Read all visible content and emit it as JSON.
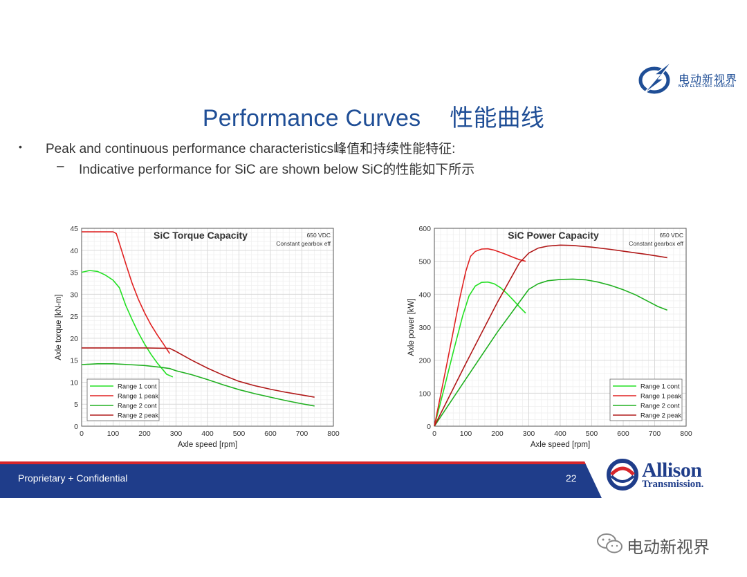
{
  "slide": {
    "title_en": "Performance Curves",
    "title_cn": "性能曲线",
    "bullet1": "Peak and continuous performance characteristics峰值和持续性能特征:",
    "bullet2_marker": "–",
    "bullet1_marker": "•",
    "bullet2": "Indicative performance for SiC are shown below SiC的性能如下所示",
    "footer_left": "Proprietary + Confidential",
    "page_number": "22",
    "brand_cn": "电动新视界",
    "brand_en": "NEW ELECTRIC HORIZON",
    "allison_name": "Allison",
    "allison_sub": "Transmission.",
    "wechat_name": "电动新视界",
    "colors": {
      "title_blue": "#1f4e96",
      "footer_blue": "#1f3d8a",
      "footer_red": "#d7262b"
    }
  },
  "chart_data": [
    {
      "type": "line",
      "title": "SiC Torque Capacity",
      "annotation": [
        "650 VDC",
        "Constant gearbox eff"
      ],
      "xlabel": "Axle speed [rpm]",
      "ylabel": "Axle torque [kN-m]",
      "xlim": [
        0,
        800
      ],
      "ylim": [
        0,
        45
      ],
      "xticks": [
        0,
        100,
        200,
        300,
        400,
        500,
        600,
        700,
        800
      ],
      "yticks": [
        0,
        5,
        10,
        15,
        20,
        25,
        30,
        35,
        40,
        45
      ],
      "grid": true,
      "legend_position": "bottom-left",
      "series": [
        {
          "name": "Range 1 cont",
          "color": "#22e022",
          "x": [
            0,
            25,
            50,
            75,
            100,
            120,
            140,
            160,
            180,
            200,
            220,
            240,
            260,
            270,
            290
          ],
          "y": [
            35,
            35.4,
            35.2,
            34.4,
            33.2,
            31.5,
            27.5,
            24.3,
            21.3,
            18.7,
            16.4,
            14.4,
            12.7,
            11.8,
            11.2
          ]
        },
        {
          "name": "Range 1 peak",
          "color": "#e02020",
          "x": [
            0,
            50,
            100,
            110,
            120,
            140,
            160,
            180,
            200,
            220,
            240,
            260,
            280
          ],
          "y": [
            44.2,
            44.2,
            44.2,
            43.8,
            41.6,
            37.0,
            32.6,
            28.9,
            25.8,
            23.1,
            20.8,
            18.7,
            16.5
          ]
        },
        {
          "name": "Range 2 cont",
          "color": "#20b020",
          "x": [
            0,
            50,
            100,
            150,
            200,
            250,
            280,
            300,
            350,
            400,
            450,
            500,
            550,
            600,
            650,
            700,
            740
          ],
          "y": [
            14.0,
            14.2,
            14.2,
            14.0,
            13.8,
            13.4,
            13.1,
            12.6,
            11.7,
            10.6,
            9.4,
            8.3,
            7.4,
            6.6,
            5.8,
            5.1,
            4.6
          ]
        },
        {
          "name": "Range 2 peak",
          "color": "#b01818",
          "x": [
            0,
            100,
            200,
            280,
            300,
            350,
            400,
            450,
            500,
            550,
            600,
            650,
            700,
            740
          ],
          "y": [
            17.8,
            17.8,
            17.8,
            17.7,
            17.0,
            15.0,
            13.2,
            11.6,
            10.2,
            9.2,
            8.4,
            7.7,
            7.1,
            6.6
          ]
        }
      ]
    },
    {
      "type": "line",
      "title": "SiC Power Capacity",
      "annotation": [
        "650 VDC",
        "Constant gearbox eff"
      ],
      "xlabel": "Axle speed [rpm]",
      "ylabel": "Axle power [kW]",
      "xlim": [
        0,
        800
      ],
      "ylim": [
        0,
        600
      ],
      "xticks": [
        0,
        100,
        200,
        300,
        400,
        500,
        600,
        700,
        800
      ],
      "yticks": [
        0,
        100,
        200,
        300,
        400,
        500,
        600
      ],
      "grid": true,
      "legend_position": "bottom-right",
      "series": [
        {
          "name": "Range 1 cont",
          "color": "#22e022",
          "x": [
            0,
            30,
            60,
            90,
            110,
            130,
            150,
            170,
            190,
            210,
            230,
            250,
            270,
            290
          ],
          "y": [
            0,
            110,
            225,
            335,
            395,
            425,
            436,
            437,
            432,
            420,
            403,
            383,
            362,
            343
          ]
        },
        {
          "name": "Range 1 peak",
          "color": "#e02020",
          "x": [
            0,
            40,
            80,
            100,
            115,
            130,
            150,
            170,
            190,
            210,
            230,
            250,
            270,
            290
          ],
          "y": [
            0,
            190,
            385,
            470,
            515,
            530,
            537,
            538,
            534,
            527,
            520,
            512,
            505,
            500
          ]
        },
        {
          "name": "Range 2 cont",
          "color": "#20b020",
          "x": [
            0,
            100,
            200,
            300,
            330,
            360,
            400,
            440,
            480,
            520,
            560,
            600,
            640,
            680,
            710,
            740
          ],
          "y": [
            0,
            143,
            285,
            415,
            432,
            441,
            445,
            446,
            444,
            437,
            427,
            414,
            398,
            378,
            363,
            352
          ]
        },
        {
          "name": "Range 2 peak",
          "color": "#b01818",
          "x": [
            0,
            100,
            200,
            270,
            300,
            330,
            360,
            400,
            440,
            500,
            560,
            620,
            680,
            740
          ],
          "y": [
            0,
            190,
            375,
            495,
            525,
            540,
            546,
            549,
            548,
            543,
            536,
            528,
            520,
            511
          ]
        }
      ]
    }
  ]
}
